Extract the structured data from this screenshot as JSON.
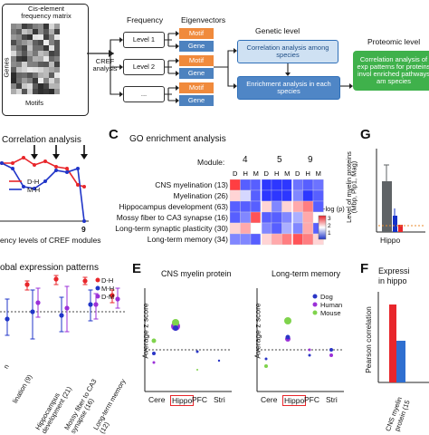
{
  "panelA": {
    "matrix_title": "Cis-element frequency matrix",
    "genes_label": "Genes",
    "motifs_label": "Motifs",
    "arrow_label": "CREF analysis",
    "frequency_header": "Frequency",
    "eigen_header": "Eigenvectors",
    "levels": [
      "Level 1",
      "Level 2",
      "..."
    ],
    "motif_label": "Motif",
    "gene_label": "Gene",
    "genetic_header": "Genetic level",
    "proteomic_header": "Proteomic  level",
    "box_corr": "Correlation analysis among species",
    "box_enrich": "Enrichment analysis in each species",
    "box_proteomic": "Correlation analysis of exp patterns for proteins invol enriched pathways am species"
  },
  "panelB": {
    "title": "Correlation analysis",
    "xlabel": "ency levels of CREF modules",
    "tick9": "9",
    "legend": [
      "D-H",
      "M-H"
    ]
  },
  "panelC": {
    "letter": "C",
    "title": "GO enrichment analysis",
    "module_label": "Module:",
    "modules": [
      "4",
      "5",
      "9"
    ],
    "species": [
      "D",
      "H",
      "M",
      "D",
      "H",
      "M",
      "D",
      "H",
      "M"
    ],
    "rows": [
      "CNS myelination (13)",
      "Myelination (26)",
      "Hippocampus development (63)",
      "Mossy fiber to CA3 synapse (16)",
      "Long-term synaptic plasticity (30)",
      "Long-term memory (34)"
    ],
    "scale_label": "-log (p)",
    "scale_ticks": [
      "3",
      "2",
      "1"
    ],
    "colors": {
      "high": "#e8262b",
      "low": "#2035c8"
    }
  },
  "panelD": {
    "title": "obal expression patterns",
    "legend": [
      "D-H",
      "M-H",
      "D-M"
    ],
    "xlabels": [
      "lination (9)",
      "Hippocampus development (21)",
      "Mossy fiber to CA3 synapse (16)",
      "Long-term memory (12)"
    ],
    "extra_label": "n"
  },
  "panelE": {
    "letter": "E",
    "title_left": "CNS myelin protein",
    "title_right": "Long-term memory",
    "ylabel": "Average z score",
    "regions": [
      "Cere",
      "Hippo",
      "PFC",
      "Stri"
    ],
    "legend": [
      "Dog",
      "Human",
      "Mouse"
    ],
    "colors": {
      "dog": "#2a35c6",
      "human": "#9b30d8",
      "mouse": "#7fd34c"
    }
  },
  "panelF": {
    "letter": "F",
    "title_line1": "Expressi",
    "title_line2": "in hippo",
    "ylabel": "Pearson correlation",
    "xlabels": [
      "CNS myelin",
      "protein (15"
    ]
  },
  "panelG": {
    "letter": "G",
    "ylabel_line1": "Level of myelin proteins",
    "ylabel_line2": "(Mbp, Plp1, Mag)",
    "xlabel": "Hippo"
  }
}
